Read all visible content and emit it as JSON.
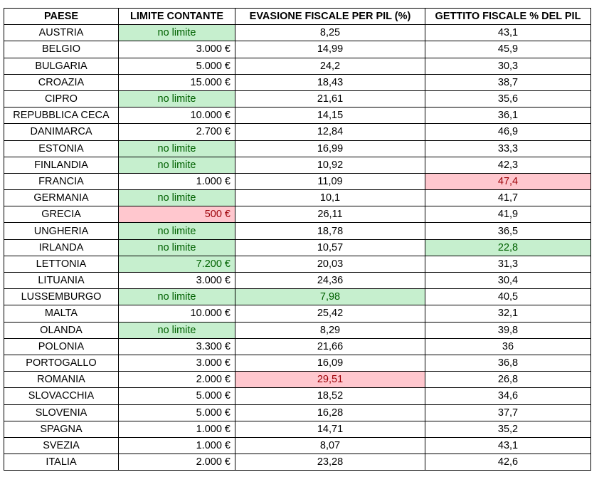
{
  "table": {
    "headers": [
      "PAESE",
      "LIMITE CONTANTE",
      "EVASIONE FISCALE PER PIL (%)",
      "GETTITO FISCALE % DEL PIL"
    ],
    "highlight_colors": {
      "good_fill": "#c6efce",
      "good_text": "#006100",
      "bad_fill": "#ffc7ce",
      "bad_text": "#9c0006"
    },
    "rows": [
      {
        "country": "AUSTRIA",
        "limit": "no limite",
        "evasion": "8,25",
        "revenue": "43,1",
        "limit_hl": "good"
      },
      {
        "country": "BELGIO",
        "limit": "3.000 €",
        "evasion": "14,99",
        "revenue": "45,9"
      },
      {
        "country": "BULGARIA",
        "limit": "5.000 €",
        "evasion": "24,2",
        "revenue": "30,3"
      },
      {
        "country": "CROAZIA",
        "limit": "15.000 €",
        "evasion": "18,43",
        "revenue": "38,7"
      },
      {
        "country": "CIPRO",
        "limit": "no limite",
        "evasion": "21,61",
        "revenue": "35,6",
        "limit_hl": "good"
      },
      {
        "country": "REPUBBLICA CECA",
        "limit": "10.000 €",
        "evasion": "14,15",
        "revenue": "36,1"
      },
      {
        "country": "DANIMARCA",
        "limit": "2.700 €",
        "evasion": "12,84",
        "revenue": "46,9"
      },
      {
        "country": "ESTONIA",
        "limit": "no limite",
        "evasion": "16,99",
        "revenue": "33,3",
        "limit_hl": "good"
      },
      {
        "country": "FINLANDIA",
        "limit": "no limite",
        "evasion": "10,92",
        "revenue": "42,3",
        "limit_hl": "good"
      },
      {
        "country": "FRANCIA",
        "limit": "1.000 €",
        "evasion": "11,09",
        "revenue": "47,4",
        "revenue_hl": "bad"
      },
      {
        "country": "GERMANIA",
        "limit": "no limite",
        "evasion": "10,1",
        "revenue": "41,7",
        "limit_hl": "good"
      },
      {
        "country": "GRECIA",
        "limit": "500 €",
        "evasion": "26,11",
        "revenue": "41,9",
        "limit_hl": "bad"
      },
      {
        "country": "UNGHERIA",
        "limit": "no limite",
        "evasion": "18,78",
        "revenue": "36,5",
        "limit_hl": "good"
      },
      {
        "country": "IRLANDA",
        "limit": "no limite",
        "evasion": "10,57",
        "revenue": "22,8",
        "limit_hl": "good",
        "revenue_hl": "good"
      },
      {
        "country": "LETTONIA",
        "limit": "7.200 €",
        "evasion": "20,03",
        "revenue": "31,3",
        "limit_hl": "good"
      },
      {
        "country": "LITUANIA",
        "limit": "3.000 €",
        "evasion": "24,36",
        "revenue": "30,4"
      },
      {
        "country": "LUSSEMBURGO",
        "limit": "no limite",
        "evasion": "7,98",
        "revenue": "40,5",
        "limit_hl": "good",
        "evasion_hl": "good"
      },
      {
        "country": "MALTA",
        "limit": "10.000 €",
        "evasion": "25,42",
        "revenue": "32,1"
      },
      {
        "country": "OLANDA",
        "limit": "no limite",
        "evasion": "8,29",
        "revenue": "39,8",
        "limit_hl": "good"
      },
      {
        "country": "POLONIA",
        "limit": "3.300 €",
        "evasion": "21,66",
        "revenue": "36"
      },
      {
        "country": "PORTOGALLO",
        "limit": "3.000 €",
        "evasion": "16,09",
        "revenue": "36,8"
      },
      {
        "country": "ROMANIA",
        "limit": "2.000 €",
        "evasion": "29,51",
        "revenue": "26,8",
        "evasion_hl": "bad"
      },
      {
        "country": "SLOVACCHIA",
        "limit": "5.000 €",
        "evasion": "18,52",
        "revenue": "34,6"
      },
      {
        "country": "SLOVENIA",
        "limit": "5.000 €",
        "evasion": "16,28",
        "revenue": "37,7"
      },
      {
        "country": "SPAGNA",
        "limit": "1.000 €",
        "evasion": "14,71",
        "revenue": "35,2"
      },
      {
        "country": "SVEZIA",
        "limit": "1.000 €",
        "evasion": "8,07",
        "revenue": "43,1"
      },
      {
        "country": "ITALIA",
        "limit": "2.000 €",
        "evasion": "23,28",
        "revenue": "42,6"
      }
    ]
  }
}
